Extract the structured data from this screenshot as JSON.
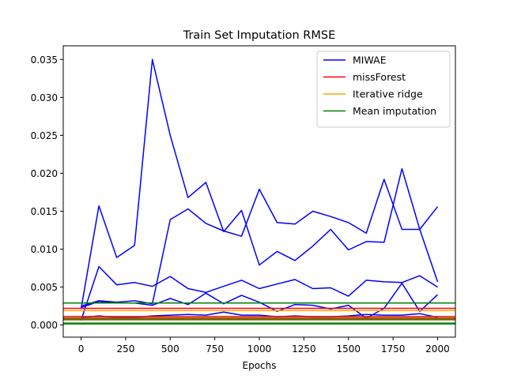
{
  "chart_data": {
    "type": "line",
    "title": "Train Set Imputation RMSE",
    "xlabel": "Epochs",
    "ylabel": "",
    "xlim": [
      -100,
      2100
    ],
    "ylim": [
      -0.0016,
      0.0368
    ],
    "xticks": [
      0,
      250,
      500,
      750,
      1000,
      1250,
      1500,
      1750,
      2000
    ],
    "yticks": [
      0.0,
      0.005,
      0.01,
      0.015,
      0.02,
      0.025,
      0.03,
      0.035
    ],
    "ytick_labels": [
      "0.000",
      "0.005",
      "0.010",
      "0.015",
      "0.020",
      "0.025",
      "0.030",
      "0.035"
    ],
    "grid": false,
    "legend_position": "top-right",
    "legend": [
      {
        "name": "MIWAE",
        "color": "#0000ff"
      },
      {
        "name": "missForest",
        "color": "#ff0000"
      },
      {
        "name": "Iterative ridge",
        "color": "#ffa500"
      },
      {
        "name": "Mean imputation",
        "color": "#008000"
      }
    ],
    "x": [
      0,
      100,
      200,
      300,
      400,
      500,
      600,
      700,
      800,
      900,
      1000,
      1100,
      1200,
      1300,
      1400,
      1500,
      1600,
      1700,
      1800,
      1900,
      2000
    ],
    "miwae_series": [
      {
        "values": [
          0.0021,
          0.0157,
          0.0089,
          0.0105,
          0.035,
          0.025,
          0.0168,
          0.0188,
          0.0123,
          0.0151,
          0.0079,
          0.0097,
          0.0085,
          0.0104,
          0.0126,
          0.0099,
          0.011,
          0.0109,
          0.0206,
          0.0126,
          0.0057
        ]
      },
      {
        "values": [
          0.0006,
          0.0077,
          0.0053,
          0.0056,
          0.0051,
          0.0064,
          0.0048,
          0.0043,
          0.0051,
          0.0059,
          0.0048,
          0.0054,
          0.006,
          0.0048,
          0.0049,
          0.0038,
          0.0059,
          0.0057,
          0.0056,
          0.0065,
          0.005
        ]
      },
      {
        "values": [
          0.0025,
          0.0032,
          0.003,
          0.0032,
          0.0028,
          0.0139,
          0.0153,
          0.0134,
          0.0124,
          0.0117,
          0.0179,
          0.0135,
          0.0133,
          0.015,
          0.0143,
          0.0135,
          0.0121,
          0.0192,
          0.0126,
          0.0126,
          0.0156
        ]
      },
      {
        "values": [
          0.0023,
          0.0031,
          0.0029,
          0.0029,
          0.0026,
          0.0035,
          0.0027,
          0.0042,
          0.0028,
          0.0039,
          0.003,
          0.0018,
          0.0027,
          0.0026,
          0.0021,
          0.0026,
          0.0009,
          0.0022,
          0.0055,
          0.0018,
          0.004
        ]
      },
      {
        "values": [
          0.001,
          0.0012,
          0.001,
          0.001,
          0.0012,
          0.0013,
          0.0014,
          0.0013,
          0.0017,
          0.0013,
          0.0013,
          0.0011,
          0.0012,
          0.0011,
          0.0011,
          0.0012,
          0.0014,
          0.0013,
          0.0013,
          0.0015,
          0.001
        ]
      }
    ],
    "hlines": [
      {
        "series": "Mean imputation",
        "color": "#008000",
        "y": 0.0029,
        "width": 1.5
      },
      {
        "series": "missForest",
        "color": "#ff0000",
        "y": 0.0022,
        "width": 1.5
      },
      {
        "series": "Iterative ridge",
        "color": "#ffa500",
        "y": 0.0019,
        "width": 1.5
      },
      {
        "series": "missForest",
        "color": "#ff0000",
        "y": 0.0011,
        "width": 1.5
      },
      {
        "series": "Iterative ridge",
        "color": "#ffa500",
        "y": 0.0009,
        "width": 1.5
      },
      {
        "series": "Mean imputation",
        "color": "#806000",
        "y": 0.0008,
        "width": 3.5
      },
      {
        "series": "Mean imputation",
        "color": "#008000",
        "y": 0.0002,
        "width": 2.5
      }
    ]
  }
}
